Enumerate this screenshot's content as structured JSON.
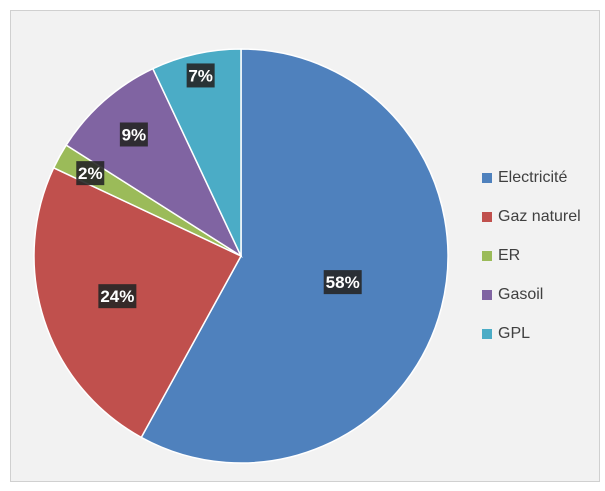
{
  "chart_data": {
    "type": "pie",
    "categories": [
      "Electricité",
      "Gaz naturel",
      "ER",
      "Gasoil",
      "GPL"
    ],
    "values": [
      58,
      24,
      2,
      9,
      7
    ],
    "labels": [
      "58%",
      "24%",
      "2%",
      "9%",
      "7%"
    ],
    "colors": [
      "#4f81bd",
      "#c0504d",
      "#9bbb59",
      "#8064a2",
      "#4bacc6"
    ],
    "legend_position": "right",
    "start_angle": "top",
    "direction": "clockwise"
  }
}
